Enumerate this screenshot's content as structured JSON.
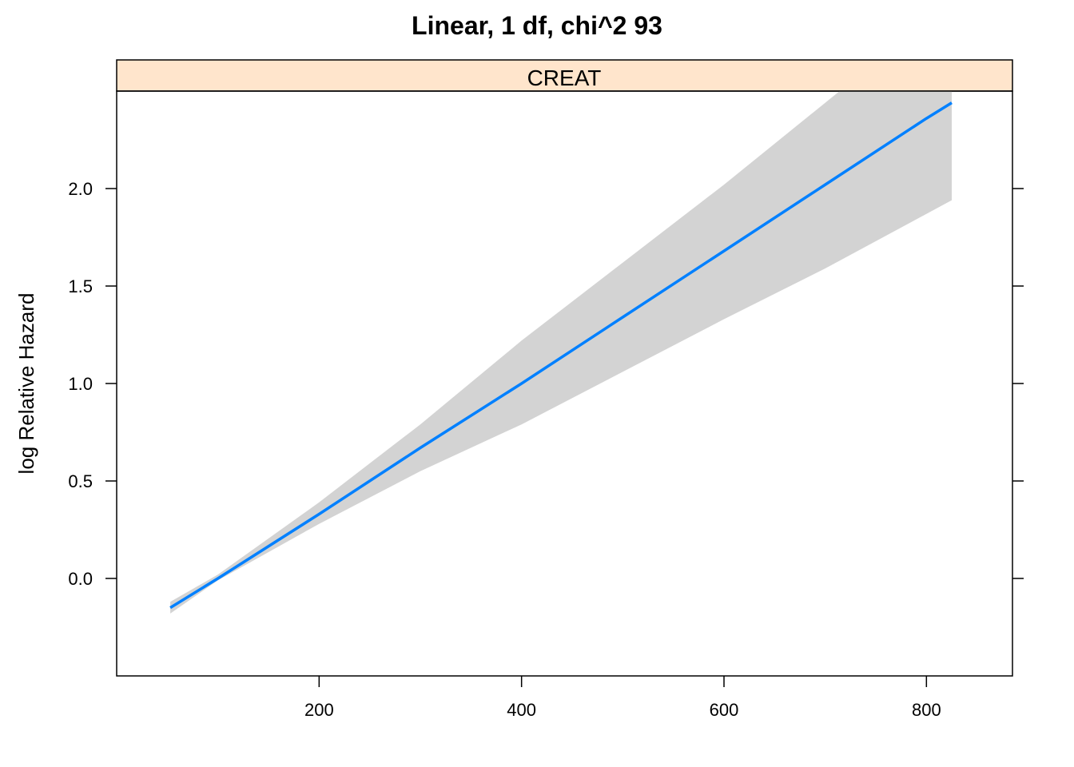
{
  "chart_data": {
    "type": "line",
    "title": "Linear, 1 df, chi^2 93",
    "panel_label": "CREAT",
    "xlabel": "",
    "ylabel": "log Relative Hazard",
    "xlim": [
      0,
      885
    ],
    "ylim": [
      -0.5,
      2.5
    ],
    "x_ticks": [
      200,
      400,
      600,
      800
    ],
    "x_tick_labels": [
      "200",
      "400",
      "600",
      "800"
    ],
    "y_ticks": [
      0.0,
      0.5,
      1.0,
      1.5,
      2.0
    ],
    "y_tick_labels": [
      "0.0",
      "0.5",
      "1.0",
      "1.5",
      "2.0"
    ],
    "grid": false,
    "series": [
      {
        "x": [
          53,
          100,
          200,
          300,
          400,
          500,
          600,
          700,
          800,
          825
        ],
        "y": [
          -0.15,
          0.0,
          0.33,
          0.67,
          1.0,
          1.34,
          1.68,
          2.02,
          2.36,
          2.44
        ],
        "lower": [
          -0.18,
          -0.01,
          0.28,
          0.55,
          0.79,
          1.06,
          1.33,
          1.59,
          1.87,
          1.94
        ],
        "upper": [
          -0.12,
          0.02,
          0.39,
          0.79,
          1.22,
          1.62,
          2.02,
          2.44,
          2.86,
          2.96
        ]
      }
    ],
    "colors": {
      "line": "#0080ff",
      "band": "#d3d3d3",
      "strip": "#ffe5cc"
    }
  }
}
